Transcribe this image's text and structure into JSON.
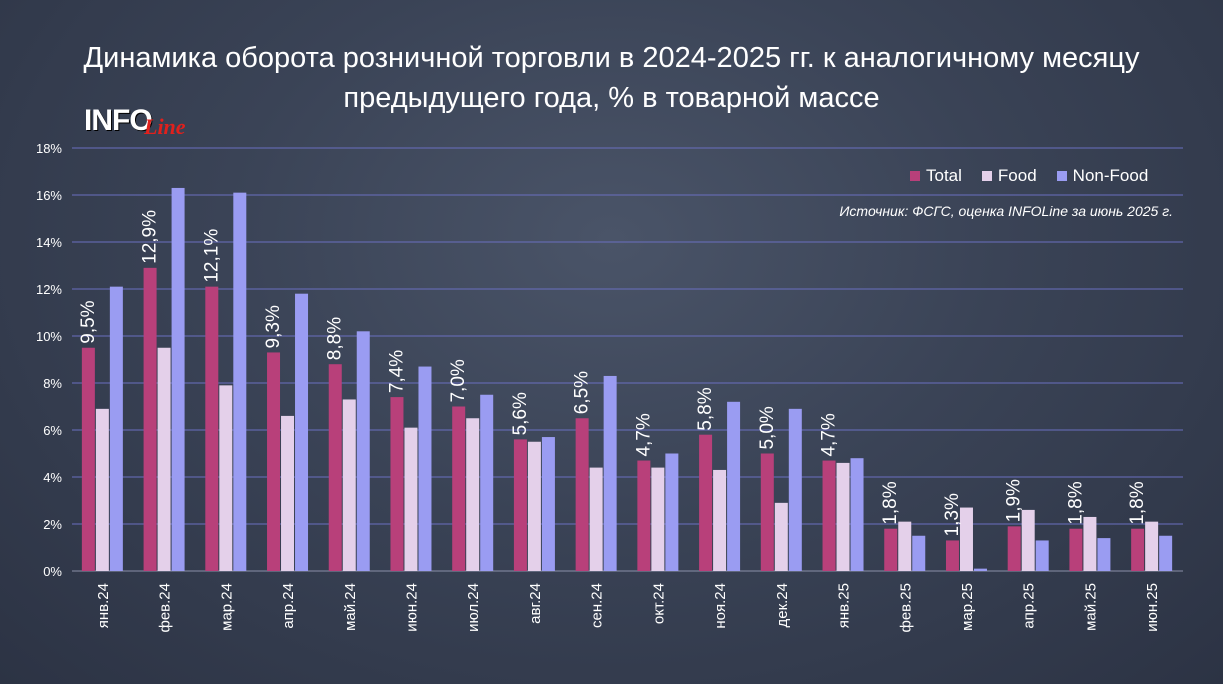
{
  "title_line1": "Динамика оборота розничной торговли в 2024-2025 гг. к аналогичному месяцу",
  "title_line2": "предыдущего года, % в товарной массе",
  "logo": {
    "text_info": "INFO",
    "text_line": "Line"
  },
  "source": "Источник: ФСГС, оценка INFOLine за июнь 2025 г.",
  "colors": {
    "total": "#b8407a",
    "food": "#e4d0ea",
    "nonfood": "#9a9cf2",
    "grid": "#6a6fc0",
    "background": "#3a4356"
  },
  "chart_data": {
    "type": "bar",
    "categories": [
      "янв.24",
      "фев.24",
      "мар.24",
      "апр.24",
      "май.24",
      "июн.24",
      "июл.24",
      "авг.24",
      "сен.24",
      "окт.24",
      "ноя.24",
      "дек.24",
      "янв.25",
      "фев.25",
      "мар.25",
      "апр.25",
      "май.25",
      "июн.25"
    ],
    "series": [
      {
        "name": "Total",
        "values": [
          9.5,
          12.9,
          12.1,
          9.3,
          8.8,
          7.4,
          7.0,
          5.6,
          6.5,
          4.7,
          5.8,
          5.0,
          4.7,
          1.8,
          1.3,
          1.9,
          1.8,
          1.8
        ]
      },
      {
        "name": "Food",
        "values": [
          6.9,
          9.5,
          7.9,
          6.6,
          7.3,
          6.1,
          6.5,
          5.5,
          4.4,
          4.4,
          4.3,
          2.9,
          4.6,
          2.1,
          2.7,
          2.6,
          2.3,
          2.1
        ]
      },
      {
        "name": "Non-Food",
        "values": [
          12.1,
          16.3,
          16.1,
          11.8,
          10.2,
          8.7,
          7.5,
          5.7,
          8.3,
          5.0,
          7.2,
          6.9,
          4.8,
          1.5,
          0.1,
          1.3,
          1.4,
          1.5
        ]
      }
    ],
    "data_labels": [
      "9,5%",
      "12,9%",
      "12,1%",
      "9,3%",
      "8,8%",
      "7,4%",
      "7,0%",
      "5,6%",
      "6,5%",
      "4,7%",
      "5,8%",
      "5,0%",
      "4,7%",
      "1,8%",
      "1,3%",
      "1,9%",
      "1,8%",
      "1,8%"
    ],
    "y_ticks": [
      "0%",
      "2%",
      "4%",
      "6%",
      "8%",
      "10%",
      "12%",
      "14%",
      "16%",
      "18%"
    ],
    "ylim": [
      0,
      18
    ],
    "grid": true,
    "legend": "top-right"
  }
}
